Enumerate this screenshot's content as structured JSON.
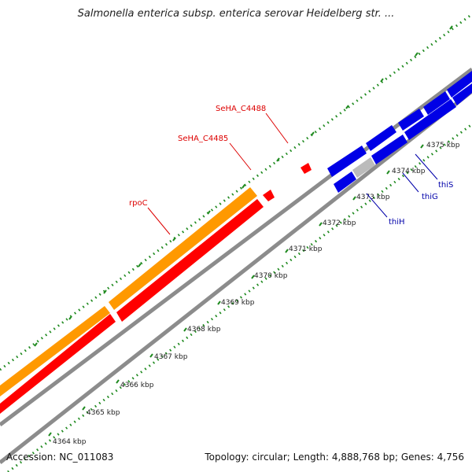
{
  "title": "Salmonella enterica subsp. enterica serovar Heidelberg str. ...",
  "footer": {
    "accession": "Accession: NC_011083",
    "summary": "Topology: circular; Length: 4,888,768 bp; Genes: 4,756"
  },
  "colors": {
    "ruler_dots": "#1f8a1f",
    "backbone": "#8c8c8c",
    "orange_feature": "#ff9900",
    "red_feature": "#ff0000",
    "blue_feature": "#0000e6",
    "gray_feature": "#bbbbbb",
    "label_red": "#dd0000",
    "label_blue": "#0000aa",
    "tick_label": "#222222"
  },
  "ruler": {
    "unit": "kbp",
    "ticks": [
      "4364 kbp",
      "4365 kbp",
      "4366 kbp",
      "4367 kbp",
      "4368 kbp",
      "4369 kbp",
      "4370 kbp",
      "4371 kbp",
      "4372 kbp",
      "4373 kbp",
      "4374 kbp",
      "4375 kbp"
    ]
  },
  "gene_labels": [
    {
      "name": "SeHA_C4488",
      "color": "red"
    },
    {
      "name": "SeHA_C4485",
      "color": "red"
    },
    {
      "name": "rpoC",
      "color": "red"
    },
    {
      "name": "thiS",
      "color": "blue"
    },
    {
      "name": "thiG",
      "color": "blue"
    },
    {
      "name": "thiH",
      "color": "blue"
    }
  ]
}
